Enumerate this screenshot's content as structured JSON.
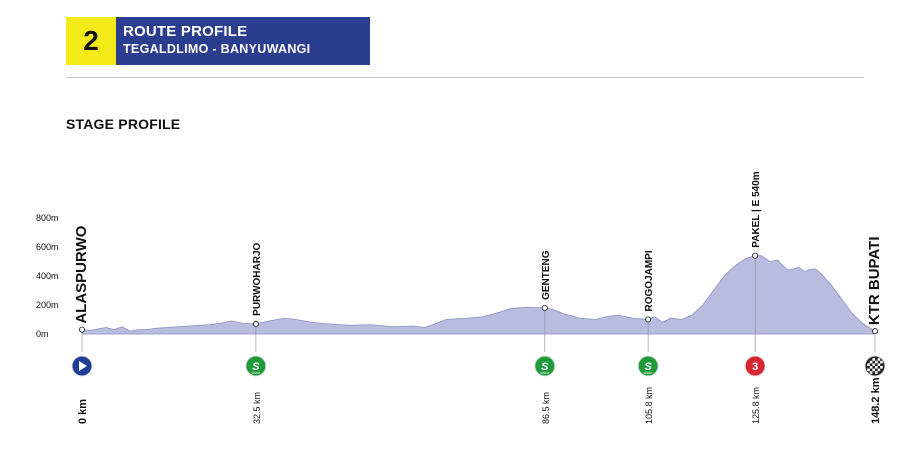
{
  "header": {
    "stage_number": "2",
    "title": "ROUTE PROFILE",
    "subtitle": "TEGALDLIMO - BANYUWANGI"
  },
  "section_title": "STAGE PROFILE",
  "colors": {
    "stage_badge": "#f4ea1a",
    "title_box": "#2b3d8e",
    "profile_fill": "#b9bbdf",
    "profile_stroke": "#8f92c4",
    "start_marker": "#1f3f97",
    "sprint_marker": "#1f9a3a",
    "climb_marker": "#d82630",
    "finish_marker": "#222222"
  },
  "chart_data": {
    "type": "area",
    "title": "",
    "xlabel": "",
    "ylabel": "",
    "xlim": [
      0,
      148.2
    ],
    "ylim": [
      0,
      800
    ],
    "y_ticks": [
      {
        "value": 0,
        "label": "0m"
      },
      {
        "value": 200,
        "label": "200m"
      },
      {
        "value": 400,
        "label": "400m"
      },
      {
        "value": 600,
        "label": "600m"
      },
      {
        "value": 800,
        "label": "800m"
      }
    ],
    "series": [
      {
        "x": [
          0,
          1.5,
          3,
          4.5,
          6,
          7.5,
          9,
          10.5,
          12,
          14,
          16,
          18,
          20,
          22,
          24,
          26,
          28,
          30,
          32.5,
          35,
          38,
          40,
          43,
          46,
          50,
          54,
          58,
          62,
          64,
          66,
          68,
          70,
          72,
          75,
          78,
          80,
          83,
          86.5,
          88,
          90,
          93,
          96,
          98,
          100,
          103,
          105.8,
          107,
          108.5,
          110,
          112,
          114,
          116,
          118,
          120,
          122,
          124,
          125.8,
          127,
          128.5,
          130,
          131,
          132,
          133,
          134,
          135,
          136,
          137,
          138,
          140,
          142,
          144,
          146,
          148.2
        ],
        "y": [
          30,
          25,
          35,
          45,
          30,
          50,
          20,
          30,
          30,
          40,
          45,
          50,
          55,
          60,
          65,
          75,
          90,
          75,
          70,
          90,
          110,
          100,
          80,
          70,
          60,
          65,
          50,
          55,
          45,
          70,
          100,
          105,
          110,
          120,
          150,
          175,
          185,
          180,
          170,
          140,
          110,
          100,
          120,
          130,
          110,
          100,
          120,
          80,
          110,
          100,
          130,
          200,
          300,
          400,
          470,
          520,
          540,
          540,
          500,
          510,
          470,
          440,
          450,
          460,
          430,
          445,
          450,
          420,
          340,
          240,
          140,
          70,
          20
        ]
      }
    ],
    "points": [
      {
        "name": "ALASPURWO",
        "km": 0,
        "km_label": "0 km",
        "alt": 30,
        "marker": "start"
      },
      {
        "name": "PURWOHARJO",
        "km": 32.5,
        "km_label": "32.5 km",
        "alt": 70,
        "marker": "sprint"
      },
      {
        "name": "GENTENG",
        "km": 86.5,
        "km_label": "86.5 km",
        "alt": 180,
        "marker": "sprint"
      },
      {
        "name": "ROGOJAMPI",
        "km": 105.8,
        "km_label": "105.8 km",
        "alt": 100,
        "marker": "sprint"
      },
      {
        "name": "PAKEL | E 540m",
        "km": 125.8,
        "km_label": "125.8 km",
        "alt": 540,
        "marker": "climb",
        "category": "3"
      },
      {
        "name": "KTR BUPATI",
        "km": 148.2,
        "km_label": "148.2 km",
        "alt": 20,
        "marker": "finish"
      }
    ],
    "sprint_badge_text": "SPRINT",
    "grid": false,
    "legend": "none"
  }
}
